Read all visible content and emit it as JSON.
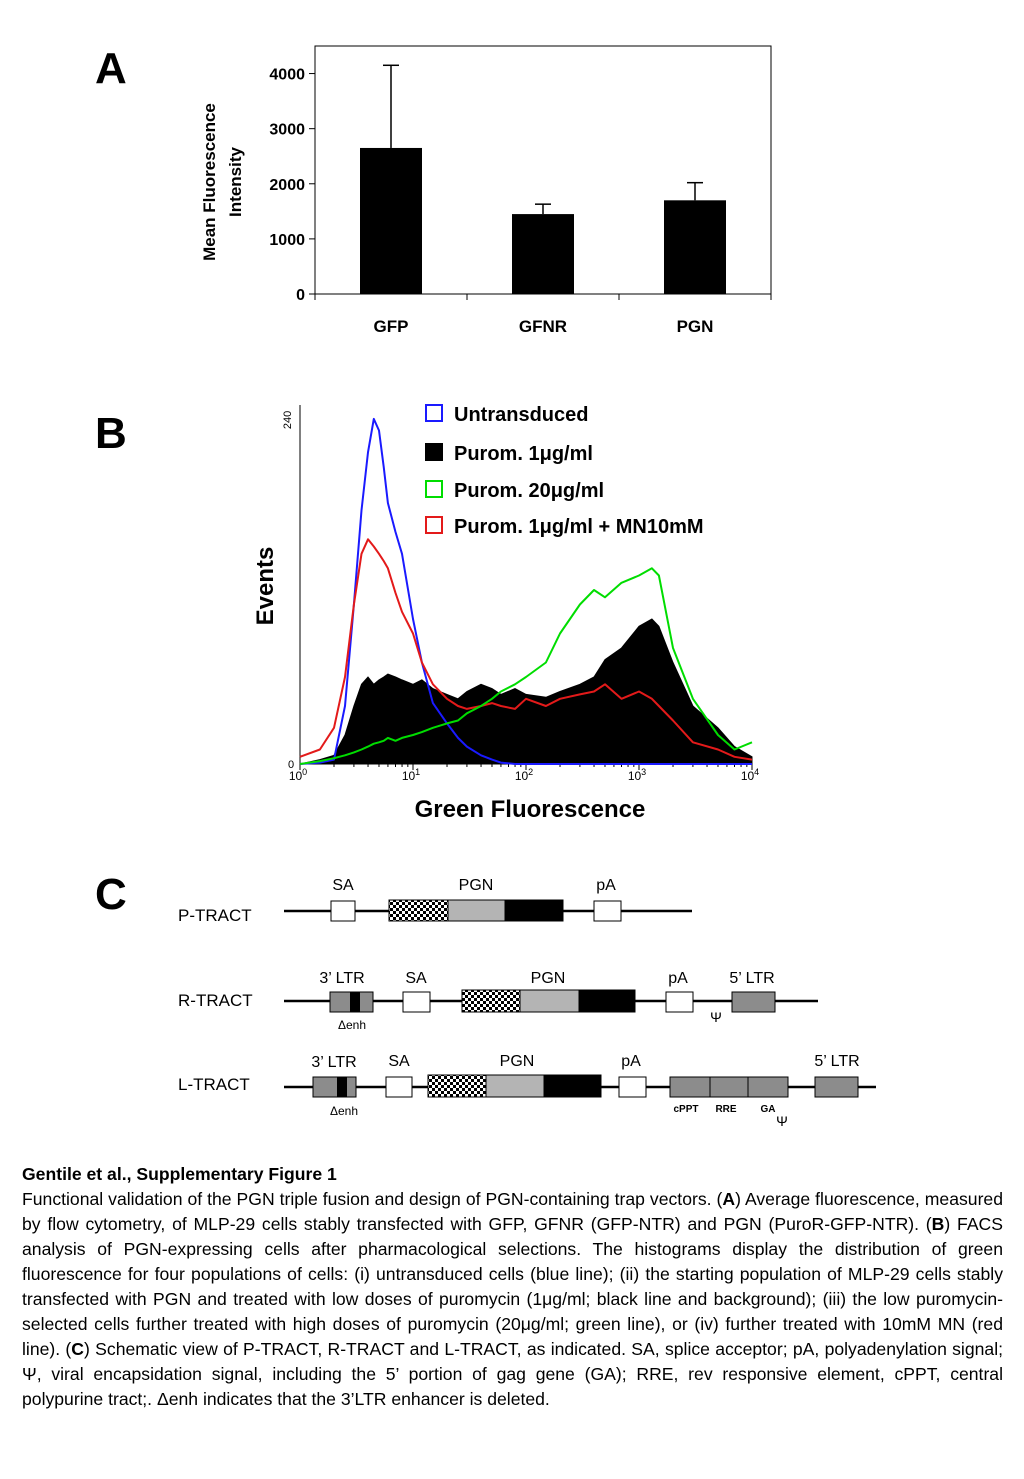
{
  "panels": {
    "a": "A",
    "b": "B",
    "c": "C"
  },
  "chart_data": [
    {
      "type": "bar",
      "ylabel_line1": "Mean Fluorescence",
      "ylabel_line2": "Intensity",
      "categories": [
        "GFP",
        "GFNR",
        "PGN"
      ],
      "values": [
        2650,
        1450,
        1700
      ],
      "error_upper": [
        4150,
        1630,
        2020
      ],
      "ylim": [
        0,
        4500
      ],
      "yticks": [
        0,
        1000,
        2000,
        3000,
        4000
      ],
      "ytick_labels": [
        "0",
        "1000",
        "2000",
        "3000",
        "4000"
      ],
      "bar_color": "#000000"
    },
    {
      "type": "line",
      "xlabel": "Green Fluorescence",
      "ylabel": "Events",
      "xscale": "log",
      "xlim": [
        1,
        10000
      ],
      "ylim": [
        0,
        240
      ],
      "ytick_labels": [
        "0",
        "240"
      ],
      "xtick_base": "10",
      "xtick_exponents": [
        "0",
        "1",
        "2",
        "3",
        "4"
      ],
      "legend_position": "top-right",
      "x": [
        1,
        1.5,
        2,
        2.5,
        3,
        3.5,
        4,
        4.5,
        5,
        5.5,
        6,
        7,
        8,
        10,
        12,
        15,
        20,
        25,
        30,
        40,
        50,
        60,
        80,
        100,
        150,
        200,
        300,
        400,
        500,
        700,
        1000,
        1300,
        1500,
        2000,
        3000,
        5000,
        7000,
        10000
      ],
      "series": [
        {
          "name": "Untransduced",
          "color": "#1a1aff",
          "filled": false,
          "values": [
            0,
            1,
            3,
            40,
            110,
            175,
            215,
            238,
            230,
            205,
            180,
            160,
            145,
            100,
            70,
            42,
            28,
            18,
            12,
            6,
            3,
            1,
            0,
            0,
            0,
            0,
            0,
            0,
            0,
            0,
            0,
            0,
            0,
            0,
            0,
            0,
            0,
            0
          ]
        },
        {
          "name": "Purom. 1μg/ml",
          "color": "#000000",
          "filled": true,
          "values": [
            0,
            3,
            6,
            20,
            40,
            55,
            60,
            55,
            58,
            60,
            62,
            60,
            58,
            55,
            58,
            52,
            48,
            45,
            50,
            55,
            52,
            48,
            52,
            48,
            46,
            50,
            55,
            60,
            72,
            80,
            95,
            100,
            95,
            70,
            40,
            25,
            12,
            5
          ]
        },
        {
          "name": "Purom. 20μg/ml",
          "color": "#00dd00",
          "filled": false,
          "values": [
            0,
            2,
            4,
            6,
            8,
            10,
            12,
            14,
            15,
            16,
            18,
            16,
            18,
            20,
            22,
            25,
            28,
            30,
            35,
            40,
            45,
            50,
            55,
            60,
            70,
            90,
            110,
            120,
            115,
            125,
            130,
            135,
            130,
            80,
            45,
            20,
            10,
            15
          ]
        },
        {
          "name": "Purom. 1μg/ml + MN10mM",
          "color": "#e31a1a",
          "filled": false,
          "values": [
            5,
            10,
            25,
            60,
            110,
            145,
            155,
            150,
            145,
            140,
            135,
            118,
            105,
            90,
            70,
            55,
            45,
            40,
            38,
            40,
            42,
            40,
            38,
            45,
            40,
            45,
            48,
            50,
            55,
            45,
            50,
            45,
            40,
            30,
            15,
            10,
            5,
            3
          ]
        }
      ]
    }
  ],
  "diagram": {
    "p_tract": {
      "name": "P-TRACT",
      "sa": "SA",
      "pgn": "PGN",
      "pa": "pA"
    },
    "r_tract": {
      "name": "R-TRACT",
      "ltr3": "3’ LTR",
      "delta_enh": "Δenh",
      "sa": "SA",
      "pgn": "PGN",
      "pa": "pA",
      "ltr5": "5’ LTR",
      "psi": "Ψ"
    },
    "l_tract": {
      "name": "L-TRACT",
      "ltr3": "3’ LTR",
      "delta_enh": "Δenh",
      "sa": "SA",
      "pgn": "PGN",
      "pa": "pA",
      "cppt": "cPPT",
      "rre": "RRE",
      "ga": "GA",
      "psi": "Ψ",
      "ltr5": "5’ LTR"
    }
  },
  "caption": {
    "title": "Gentile et al., Supplementary Figure 1",
    "t1": "Functional validation of the PGN triple fusion and design of PGN-containing trap vectors. (",
    "A": "A",
    "t2": ") Average fluorescence, measured by flow cytometry, of MLP-29 cells stably transfected with GFP, GFNR (GFP-NTR) and PGN (PuroR-GFP-NTR). (",
    "B": "B",
    "t3": ") FACS analysis of PGN-expressing cells after pharmacological selections. The histograms display the distribution of green fluorescence for four populations of cells: (i) untransduced cells (blue line); (ii) the starting population of MLP-29 cells stably transfected with PGN and treated with low doses of puromycin (1μg/ml; black line and background);  (iii) the low puromycin-selected cells further treated with high doses of puromycin (20μg/ml; green line), or (iv) further treated with 10mM MN (red line). (",
    "C": "C",
    "t4": ") Schematic view of P-TRACT, R-TRACT and L-TRACT, as indicated. SA, splice acceptor; pA, polyadenylation signal; Ψ, viral encapsidation signal, including the 5’ portion of gag gene (GA); RRE, rev responsive element, cPPT, central polypurine tract;. Δenh indicates that the 3’LTR enhancer is deleted."
  }
}
